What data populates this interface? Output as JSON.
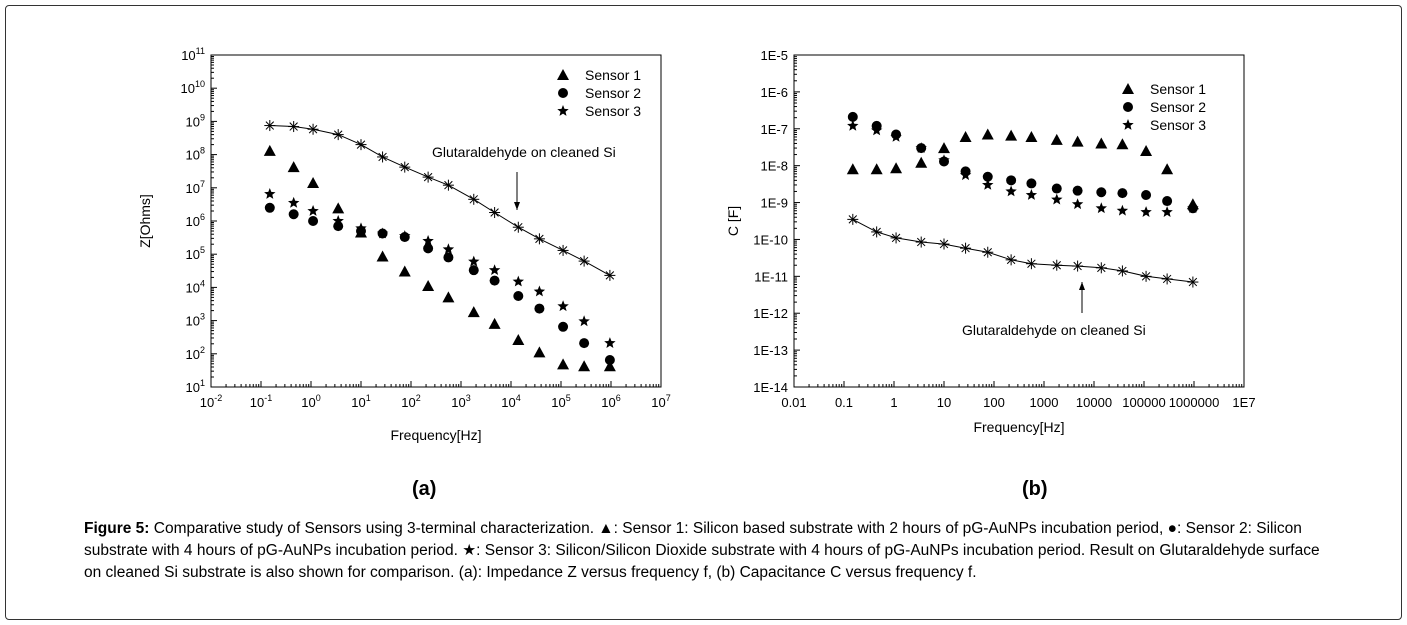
{
  "chart_data": [
    {
      "type": "scatter",
      "xlabel": "Frequency[Hz]",
      "ylabel": "Z[Ohms]",
      "xscale": "log",
      "yscale": "log",
      "xlim": [
        0.01,
        10000000
      ],
      "ylim": [
        10,
        100000000000
      ],
      "x_ticks": [
        "10",
        "10",
        "10",
        "10",
        "10",
        "10",
        "10",
        "10",
        "10",
        "10"
      ],
      "x_tick_exponents": [
        "-2",
        "-1",
        "0",
        "1",
        "2",
        "3",
        "4",
        "5",
        "6",
        "7"
      ],
      "y_ticks": [
        "10",
        "10",
        "10",
        "10",
        "10",
        "10",
        "10",
        "10",
        "10",
        "10",
        "10"
      ],
      "y_tick_exponents": [
        "1",
        "2",
        "3",
        "4",
        "5",
        "6",
        "7",
        "8",
        "9",
        "10",
        "11"
      ],
      "legend_position": "top-right",
      "annotation": "Glutaraldehyde on cleaned Si",
      "panel_label": "(a)",
      "series": [
        {
          "name": "Sensor 1",
          "marker": "triangle",
          "x": [
            0.15,
            0.45,
            1.1,
            3.5,
            10,
            27,
            75,
            220,
            560,
            1800,
            4700,
            14000,
            37000,
            110000,
            290000,
            950000
          ],
          "y": [
            130000000,
            42000000,
            14000000,
            2400000,
            450000,
            85000,
            30000,
            11000,
            5000,
            1800,
            800,
            260,
            110,
            48,
            42,
            42
          ]
        },
        {
          "name": "Sensor 2",
          "marker": "circle",
          "x": [
            0.15,
            0.45,
            1.1,
            3.5,
            10,
            27,
            75,
            220,
            560,
            1800,
            4700,
            14000,
            37000,
            110000,
            290000,
            950000
          ],
          "y": [
            2500000,
            1600000,
            1000000,
            700000,
            500000,
            420000,
            330000,
            150000,
            80000,
            33000,
            16000,
            5500,
            2300,
            650,
            210,
            65
          ]
        },
        {
          "name": "Sensor 3",
          "marker": "star",
          "x": [
            0.15,
            0.45,
            1.1,
            3.5,
            10,
            27,
            75,
            220,
            560,
            1800,
            4700,
            14000,
            37000,
            110000,
            290000,
            950000
          ],
          "y": [
            6500000,
            3500000,
            2000000,
            1000000,
            600000,
            420000,
            350000,
            250000,
            140000,
            60000,
            33000,
            15000,
            7500,
            2700,
            950,
            210
          ]
        },
        {
          "name": "",
          "marker": "asterisk-line",
          "x": [
            0.15,
            0.45,
            1.1,
            3.5,
            10,
            27,
            75,
            220,
            560,
            1800,
            4700,
            14000,
            37000,
            110000,
            290000,
            950000
          ],
          "y": [
            750000000,
            700000000,
            580000000,
            400000000,
            200000000,
            85000000,
            42000000,
            21000000,
            12000000,
            4500000,
            1800000,
            650000,
            290000,
            130000,
            62000,
            23000
          ]
        }
      ]
    },
    {
      "type": "scatter",
      "xlabel": "Frequency[Hz]",
      "ylabel": "C [F]",
      "xscale": "log",
      "yscale": "log",
      "xlim": [
        0.01,
        10000000
      ],
      "ylim": [
        1e-14,
        1e-05
      ],
      "x_ticks": [
        "0.01",
        "0.1",
        "1",
        "10",
        "100",
        "1000",
        "10000",
        "100000",
        "1000000",
        "1E7"
      ],
      "y_ticks": [
        "1E-14",
        "1E-13",
        "1E-12",
        "1E-11",
        "1E-10",
        "1E-9",
        "1E-8",
        "1E-7",
        "1E-6",
        "1E-5"
      ],
      "legend_position": "top-right",
      "annotation": "Glutaraldehyde on cleaned Si",
      "panel_label": "(b)",
      "series": [
        {
          "name": "Sensor 1",
          "marker": "triangle",
          "x": [
            0.15,
            0.45,
            1.1,
            3.5,
            10,
            27,
            75,
            220,
            560,
            1800,
            4700,
            14000,
            37000,
            110000,
            290000,
            950000
          ],
          "y": [
            8e-09,
            8e-09,
            8.5e-09,
            1.2e-08,
            3e-08,
            6e-08,
            7e-08,
            6.5e-08,
            6e-08,
            5e-08,
            4.5e-08,
            4e-08,
            3.8e-08,
            2.5e-08,
            8e-09,
            9e-10
          ]
        },
        {
          "name": "Sensor 2",
          "marker": "circle",
          "x": [
            0.15,
            0.45,
            1.1,
            3.5,
            10,
            27,
            75,
            220,
            560,
            1800,
            4700,
            14000,
            37000,
            110000,
            290000,
            950000
          ],
          "y": [
            2.1e-07,
            1.2e-07,
            7e-08,
            3e-08,
            1.3e-08,
            7e-09,
            5e-09,
            4e-09,
            3.3e-09,
            2.4e-09,
            2.1e-09,
            1.9e-09,
            1.8e-09,
            1.6e-09,
            1.1e-09,
            7e-10
          ]
        },
        {
          "name": "Sensor 3",
          "marker": "star",
          "x": [
            0.15,
            0.45,
            1.1,
            3.5,
            10,
            27,
            75,
            220,
            560,
            1800,
            4700,
            14000,
            37000,
            110000,
            290000,
            950000
          ],
          "y": [
            1.2e-07,
            9e-08,
            6e-08,
            3e-08,
            1.4e-08,
            5.5e-09,
            3e-09,
            2e-09,
            1.6e-09,
            1.2e-09,
            9e-10,
            7e-10,
            6e-10,
            5.5e-10,
            5.5e-10,
            7e-10
          ]
        },
        {
          "name": "",
          "marker": "asterisk-line",
          "x": [
            0.15,
            0.45,
            1.1,
            3.5,
            10,
            27,
            75,
            220,
            560,
            1800,
            4700,
            14000,
            37000,
            110000,
            290000,
            950000
          ],
          "y": [
            3.5e-10,
            1.6e-10,
            1.1e-10,
            8.5e-11,
            7.5e-11,
            5.8e-11,
            4.5e-11,
            2.8e-11,
            2.2e-11,
            2e-11,
            1.9e-11,
            1.7e-11,
            1.4e-11,
            1e-11,
            8.5e-12,
            7e-12
          ]
        }
      ]
    }
  ],
  "caption": {
    "label": "Figure 5:",
    "text": "Comparative study of Sensors using 3-terminal characterization. ▲: Sensor 1: Silicon based substrate with 2 hours of pG-AuNPs incubation period, ●: Sensor 2: Silicon substrate with 4 hours of pG-AuNPs incubation period. ★: Sensor 3: Silicon/Silicon Dioxide substrate with 4 hours of pG-AuNPs incubation period. Result on Glutaraldehyde surface on cleaned Si substrate is also shown for comparison. (a): Impedance Z versus frequency f, (b) Capacitance C versus frequency f."
  }
}
